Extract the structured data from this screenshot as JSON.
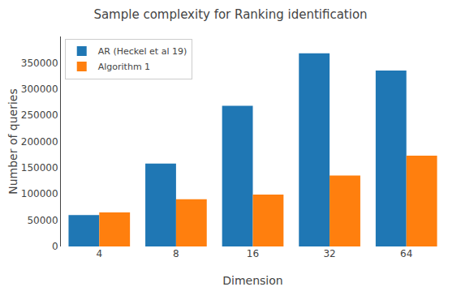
{
  "chart_data": {
    "type": "bar",
    "title": "Sample complexity for Ranking identification",
    "xlabel": "Dimension",
    "ylabel": "Number of queries",
    "categories": [
      4,
      8,
      16,
      32,
      64
    ],
    "series": [
      {
        "name": "AR (Heckel et al 19)",
        "color": "#1f77b4",
        "values": [
          60000,
          158000,
          268000,
          368000,
          335000
        ]
      },
      {
        "name": "Algorithm 1",
        "color": "#ff7f0e",
        "values": [
          65000,
          90000,
          99000,
          135000,
          173000
        ]
      }
    ],
    "ylim": [
      0,
      400000
    ],
    "yticks": [
      0,
      50000,
      100000,
      150000,
      200000,
      250000,
      300000,
      350000
    ],
    "legend": "upper_left",
    "grid": false
  }
}
